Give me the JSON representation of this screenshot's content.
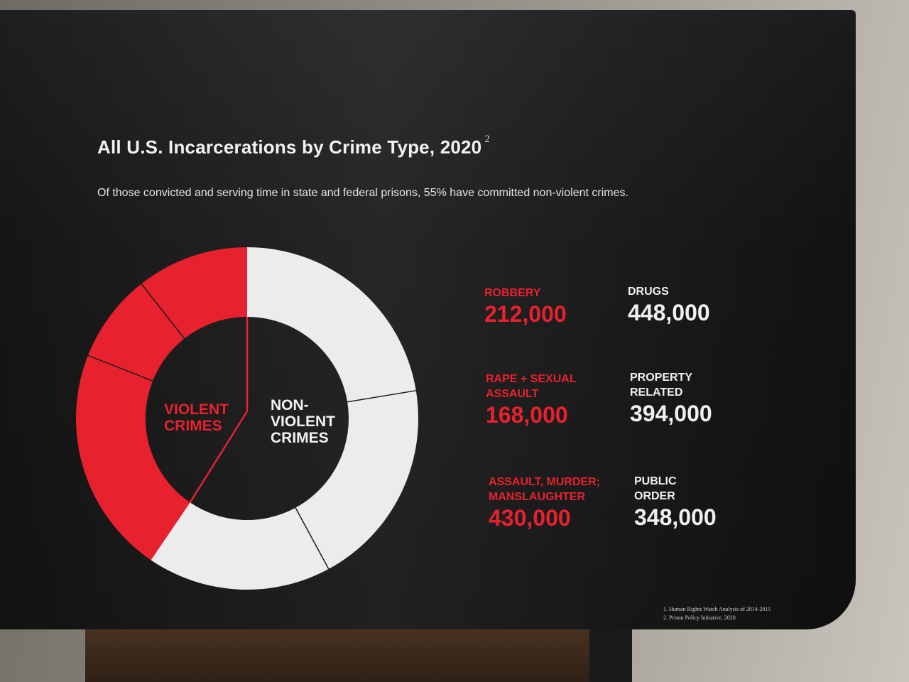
{
  "chart_data": {
    "type": "pie",
    "title": "All U.S. Incarcerations by Crime Type, 2020",
    "title_footnote_marker": "2",
    "subtitle": "Of those convicted and serving time in state and federal prisons, 55% have committed non-violent crimes.",
    "groups": [
      {
        "label": "VIOLENT\nCRIMES",
        "color": "#e8212e",
        "categories": [
          {
            "label": "ROBBERY",
            "value": 212000,
            "value_text": "212,000"
          },
          {
            "label": "RAPE + SEXUAL\nASSAULT",
            "value": 168000,
            "value_text": "168,000"
          },
          {
            "label": "ASSAULT, MURDER;\nMANSLAUGHTER",
            "value": 430000,
            "value_text": "430,000"
          }
        ]
      },
      {
        "label": "NON-\nVIOLENT\nCRIMES",
        "color": "#ececec",
        "categories": [
          {
            "label": "DRUGS",
            "value": 448000,
            "value_text": "448,000"
          },
          {
            "label": "PROPERTY\nRELATED",
            "value": 394000,
            "value_text": "394,000"
          },
          {
            "label": "PUBLIC\nORDER",
            "value": 348000,
            "value_text": "348,000"
          }
        ]
      }
    ],
    "legend_placement": "right"
  },
  "footnotes": [
    "1. Human Rights Watch Analysis of 2014-2015",
    "2. Prison Policy Initiative, 2020"
  ],
  "colors": {
    "violent": "#e8212e",
    "nonviolent": "#ececec",
    "panel": "#1c1c1c"
  }
}
